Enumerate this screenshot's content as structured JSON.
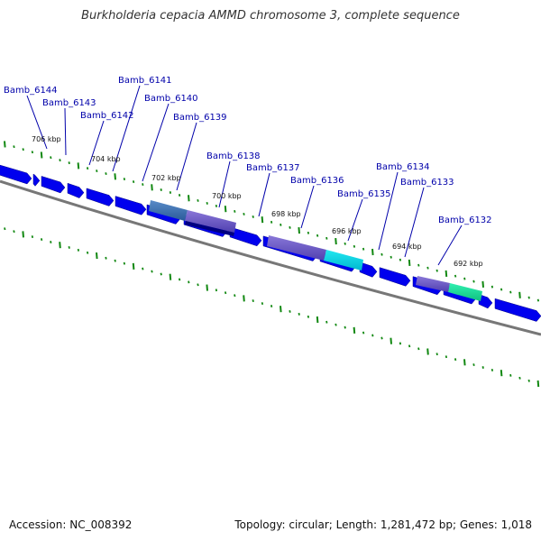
{
  "title": "Burkholderia cepacia AMMD chromosome 3, complete sequence",
  "accession_text": "Accession: NC_008392",
  "summary_text": "Topology: circular; Length: 1,281,472 bp; Genes: 1,018",
  "colors": {
    "gene": "#0000ee",
    "backbone": "#777777",
    "tick": "#118811",
    "label": "#0000aa"
  },
  "gene_labels": [
    "Bamb_6144",
    "Bamb_6143",
    "Bamb_6142",
    "Bamb_6141",
    "Bamb_6140",
    "Bamb_6139",
    "Bamb_6138",
    "Bamb_6137",
    "Bamb_6136",
    "Bamb_6135",
    "Bamb_6134",
    "Bamb_6133",
    "Bamb_6132"
  ],
  "kbp_labels": [
    "706 kbp",
    "704 kbp",
    "702 kbp",
    "700 kbp",
    "698 kbp",
    "696 kbp",
    "694 kbp",
    "692 kbp"
  ]
}
